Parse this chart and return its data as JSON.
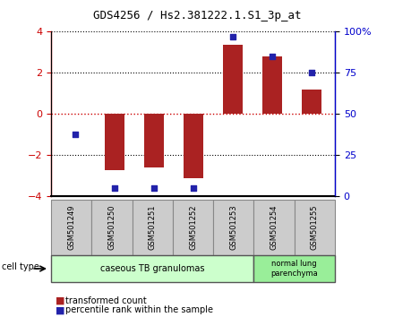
{
  "title": "GDS4256 / Hs2.381222.1.S1_3p_at",
  "samples": [
    "GSM501249",
    "GSM501250",
    "GSM501251",
    "GSM501252",
    "GSM501253",
    "GSM501254",
    "GSM501255"
  ],
  "transformed_counts": [
    0.0,
    -2.7,
    -2.6,
    -3.1,
    3.35,
    2.8,
    1.2
  ],
  "percentile_ranks": [
    38,
    5,
    5,
    5,
    97,
    85,
    75
  ],
  "ylim": [
    -4,
    4
  ],
  "y2lim": [
    0,
    100
  ],
  "yticks": [
    -4,
    -2,
    0,
    2,
    4
  ],
  "y2ticks": [
    0,
    25,
    50,
    75,
    100
  ],
  "y2tick_labels": [
    "0",
    "25",
    "50",
    "75",
    "100%"
  ],
  "bar_color": "#aa2222",
  "dot_color": "#2222aa",
  "hline_zero_color": "#cc0000",
  "hline_other_color": "#000000",
  "group1_label": "caseous TB granulomas",
  "group1_indices": [
    0,
    1,
    2,
    3,
    4
  ],
  "group2_label": "normal lung\nparenchyma",
  "group2_indices": [
    5,
    6
  ],
  "group1_color": "#ccffcc",
  "group2_color": "#99ee99",
  "sample_box_color": "#cccccc",
  "legend_transformed": "transformed count",
  "legend_percentile": "percentile rank within the sample",
  "cell_type_label": "cell type"
}
